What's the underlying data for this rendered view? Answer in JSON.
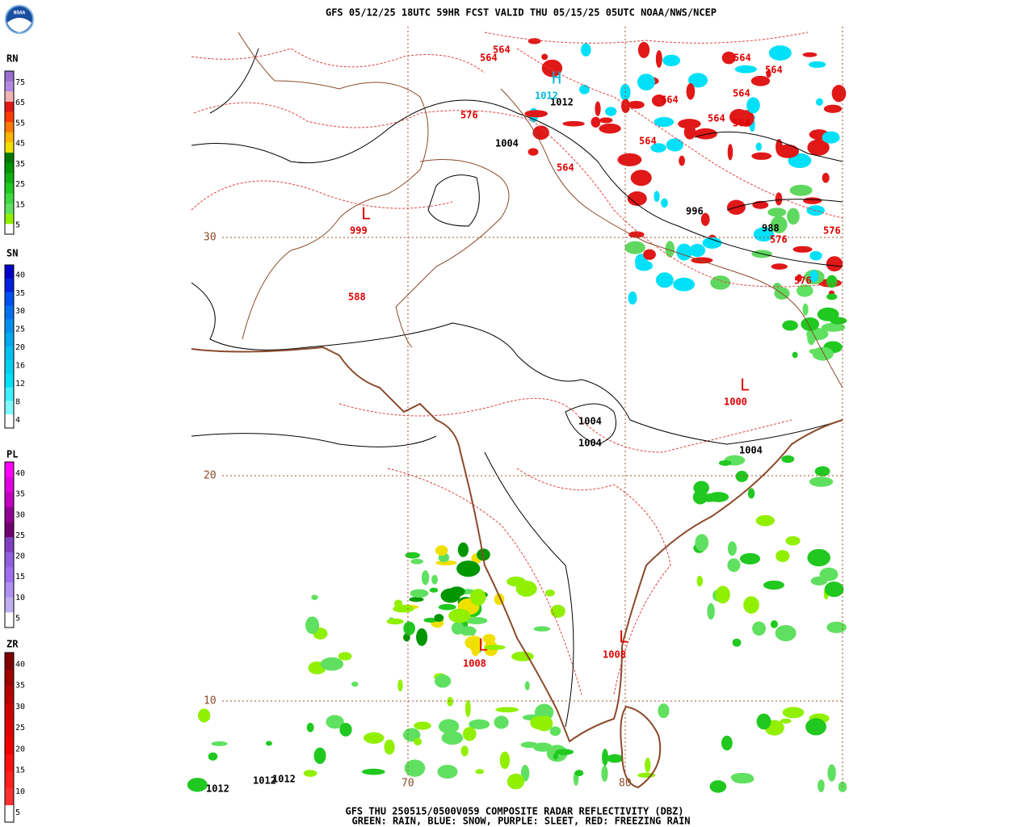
{
  "header": {
    "title": "GFS 05/12/25 18UTC 59HR FCST VALID THU 05/15/25 05UTC NOAA/NWS/NCEP",
    "logo": "NOAA"
  },
  "footer": {
    "line1": "GFS THU 250515/0500V059 COMPOSITE RADAR REFLECTIVITY (DBZ)",
    "line2": "GREEN: RAIN, BLUE: SNOW, PURPLE: SLEET, RED: FREEZING RAIN"
  },
  "legends": [
    {
      "label": "RN",
      "ticks": [
        "75",
        "65",
        "55",
        "45",
        "35",
        "25",
        "15",
        "5"
      ],
      "colors": [
        "#9a6fd0",
        "#b48ae0",
        "#f0b4b4",
        "#e01818",
        "#ff3c00",
        "#ff7800",
        "#ffb400",
        "#f0e000",
        "#007800",
        "#009600",
        "#10b010",
        "#20c820",
        "#40d840",
        "#60e060",
        "#90f000",
        "#ffffff"
      ]
    },
    {
      "label": "SN",
      "ticks": [
        "40",
        "35",
        "30",
        "25",
        "20",
        "16",
        "12",
        "8",
        "4"
      ],
      "colors": [
        "#0000c8",
        "#0020e0",
        "#0050f0",
        "#0070f0",
        "#0090f0",
        "#00a8f0",
        "#00c0f0",
        "#00d0f0",
        "#00e0f8",
        "#40f0ff",
        "#80f8ff",
        "#ffffff"
      ]
    },
    {
      "label": "PL",
      "ticks": [
        "40",
        "35",
        "30",
        "25",
        "20",
        "15",
        "10",
        "5"
      ],
      "colors": [
        "#ff00ff",
        "#e000e0",
        "#c000c0",
        "#900090",
        "#700070",
        "#8040c0",
        "#9060e0",
        "#a070f0",
        "#b090f0",
        "#c0b0f0",
        "#ffffff"
      ]
    },
    {
      "label": "ZR",
      "ticks": [
        "40",
        "35",
        "30",
        "25",
        "20",
        "15",
        "10",
        "5"
      ],
      "colors": [
        "#800000",
        "#a00000",
        "#b80000",
        "#d00000",
        "#e00000",
        "#f00000",
        "#ff1010",
        "#ff2020",
        "#ff3030",
        "#ffffff"
      ]
    }
  ],
  "grid": {
    "latitudes": [
      "30",
      "20",
      "10"
    ],
    "longitudes": [
      "70",
      "80"
    ]
  },
  "map_labels": {
    "red": [
      "564",
      "564",
      "576",
      "564",
      "564",
      "564",
      "564",
      "564",
      "564",
      "564",
      "564",
      "576",
      "576",
      "576",
      "L",
      "999",
      "588",
      "L",
      "1000",
      "L",
      "1008",
      "L",
      "1008"
    ],
    "black": [
      "1012",
      "1004",
      "996",
      "988",
      "1004",
      "1004",
      "1004",
      "1012",
      "1012",
      "1012"
    ],
    "cyan": [
      "H",
      "1012"
    ]
  }
}
